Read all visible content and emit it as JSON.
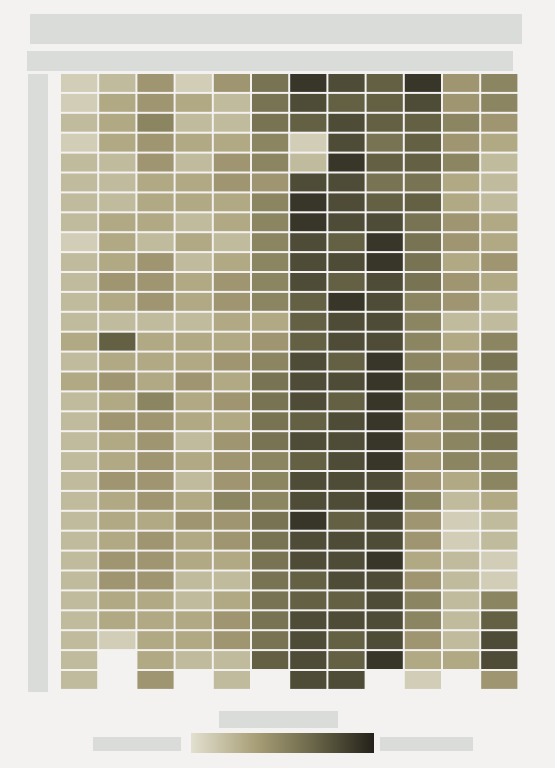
{
  "title": "",
  "subtitle": "",
  "chart_data": {
    "type": "heatmap",
    "title": "",
    "xlabel": "",
    "ylabel": "",
    "legend_title": "",
    "legend_min_label": "",
    "legend_max_label": "",
    "legend_placement": "bottom",
    "value_range": [
      0,
      10
    ],
    "colors": {
      "low": "#e2e0cf",
      "mid_low": "#a99f78",
      "mid_high": "#6e6a4b",
      "high": "#23211a",
      "background": "#f3f2f1"
    },
    "columns": 12,
    "rows": 31,
    "values": [
      [
        1,
        2,
        4,
        1,
        4,
        6,
        9,
        8,
        7,
        9,
        4,
        5
      ],
      [
        1,
        3,
        4,
        3,
        2,
        6,
        8,
        7,
        7,
        8,
        4,
        5
      ],
      [
        2,
        3,
        5,
        2,
        2,
        6,
        7,
        8,
        7,
        7,
        5,
        4
      ],
      [
        1,
        3,
        4,
        3,
        3,
        5,
        1,
        8,
        6,
        7,
        4,
        3
      ],
      [
        2,
        2,
        4,
        2,
        4,
        5,
        2,
        9,
        7,
        7,
        5,
        2
      ],
      [
        2,
        2,
        3,
        3,
        4,
        4,
        8,
        8,
        6,
        6,
        3,
        2
      ],
      [
        2,
        2,
        3,
        3,
        3,
        5,
        9,
        8,
        7,
        7,
        3,
        2
      ],
      [
        2,
        3,
        3,
        2,
        3,
        5,
        9,
        8,
        8,
        6,
        4,
        3
      ],
      [
        1,
        3,
        2,
        3,
        2,
        5,
        8,
        7,
        9,
        6,
        4,
        3
      ],
      [
        2,
        3,
        4,
        2,
        3,
        5,
        8,
        8,
        9,
        6,
        3,
        4
      ],
      [
        2,
        4,
        4,
        3,
        4,
        5,
        8,
        7,
        8,
        6,
        4,
        3
      ],
      [
        2,
        3,
        4,
        3,
        4,
        5,
        7,
        9,
        8,
        5,
        4,
        2
      ],
      [
        2,
        2,
        2,
        2,
        3,
        3,
        7,
        8,
        8,
        5,
        2,
        2
      ],
      [
        3,
        7,
        3,
        3,
        3,
        4,
        7,
        8,
        8,
        5,
        3,
        5
      ],
      [
        2,
        3,
        3,
        3,
        4,
        5,
        8,
        7,
        9,
        5,
        4,
        6
      ],
      [
        3,
        4,
        3,
        4,
        3,
        6,
        8,
        8,
        9,
        6,
        4,
        5
      ],
      [
        2,
        3,
        5,
        3,
        4,
        6,
        8,
        7,
        9,
        5,
        5,
        6
      ],
      [
        2,
        4,
        4,
        3,
        3,
        6,
        7,
        8,
        9,
        4,
        5,
        6
      ],
      [
        2,
        3,
        4,
        2,
        4,
        6,
        8,
        8,
        9,
        4,
        5,
        6
      ],
      [
        2,
        3,
        4,
        3,
        4,
        5,
        7,
        8,
        9,
        4,
        5,
        5
      ],
      [
        2,
        4,
        4,
        2,
        4,
        5,
        8,
        8,
        8,
        4,
        3,
        5
      ],
      [
        2,
        3,
        4,
        3,
        5,
        5,
        8,
        8,
        9,
        5,
        2,
        3
      ],
      [
        2,
        3,
        3,
        4,
        4,
        6,
        9,
        7,
        8,
        4,
        1,
        2
      ],
      [
        2,
        3,
        4,
        3,
        4,
        6,
        8,
        8,
        8,
        4,
        1,
        2
      ],
      [
        2,
        4,
        4,
        3,
        3,
        6,
        8,
        8,
        9,
        3,
        2,
        1
      ],
      [
        2,
        4,
        4,
        2,
        2,
        6,
        7,
        8,
        8,
        4,
        2,
        1
      ],
      [
        2,
        3,
        3,
        2,
        3,
        6,
        7,
        7,
        8,
        5,
        2,
        5
      ],
      [
        2,
        3,
        3,
        3,
        4,
        6,
        8,
        8,
        8,
        5,
        2,
        7
      ],
      [
        2,
        1,
        3,
        3,
        4,
        6,
        8,
        7,
        8,
        4,
        2,
        8
      ],
      [
        2,
        null,
        3,
        2,
        2,
        7,
        8,
        7,
        9,
        3,
        3,
        8
      ],
      [
        2,
        null,
        4,
        null,
        2,
        null,
        8,
        8,
        null,
        1,
        null,
        4
      ]
    ]
  }
}
